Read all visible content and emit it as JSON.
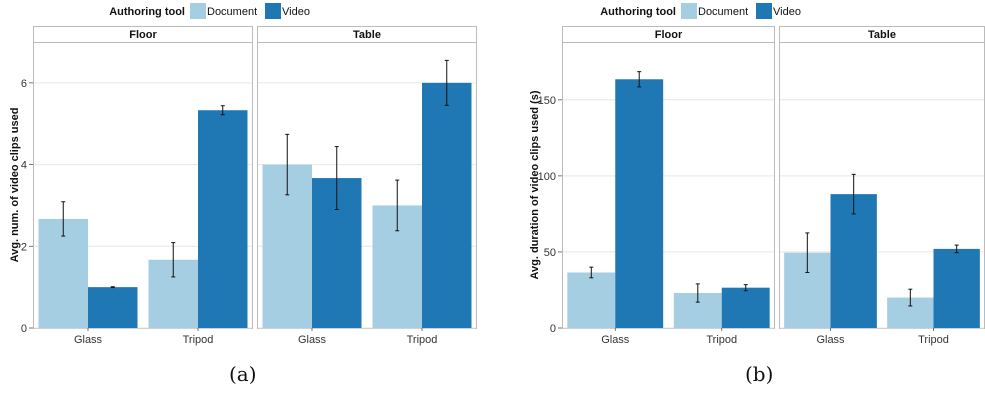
{
  "captions": [
    "(a)",
    "(b)"
  ],
  "legend": {
    "title": "Authoring tool",
    "items": [
      {
        "label": "Document",
        "color": "#a6cee3"
      },
      {
        "label": "Video",
        "color": "#1f78b4"
      }
    ]
  },
  "chart_data": [
    {
      "type": "bar",
      "ylabel": "Avg. num. of video clips used",
      "ylim": [
        0,
        7
      ],
      "yticks": [
        0,
        2,
        4,
        6
      ],
      "grid": true,
      "legend_position": "top",
      "facets": [
        {
          "label": "Floor",
          "categories": [
            "Glass",
            "Tripod"
          ],
          "series": [
            {
              "name": "Document",
              "values": [
                2.67,
                1.67
              ],
              "err": [
                0.42,
                0.42
              ]
            },
            {
              "name": "Video",
              "values": [
                1.0,
                5.33
              ],
              "err": [
                0.01,
                0.11
              ]
            }
          ]
        },
        {
          "label": "Table",
          "categories": [
            "Glass",
            "Tripod"
          ],
          "series": [
            {
              "name": "Document",
              "values": [
                4.0,
                3.0
              ],
              "err": [
                0.74,
                0.62
              ]
            },
            {
              "name": "Video",
              "values": [
                3.67,
                6.0
              ],
              "err": [
                0.77,
                0.55
              ]
            }
          ]
        }
      ]
    },
    {
      "type": "bar",
      "ylabel": "Avg. duration of video clips used (s)",
      "ylim": [
        0,
        188
      ],
      "yticks": [
        0,
        50,
        100,
        150
      ],
      "grid": true,
      "legend_position": "top",
      "facets": [
        {
          "label": "Floor",
          "categories": [
            "Glass",
            "Tripod"
          ],
          "series": [
            {
              "name": "Document",
              "values": [
                36.5,
                23.0
              ],
              "err": [
                3.5,
                6.0
              ]
            },
            {
              "name": "Video",
              "values": [
                163.5,
                26.5
              ],
              "err": [
                5.0,
                2.0
              ]
            }
          ]
        },
        {
          "label": "Table",
          "categories": [
            "Glass",
            "Tripod"
          ],
          "series": [
            {
              "name": "Document",
              "values": [
                49.5,
                20.0
              ],
              "err": [
                13.0,
                5.5
              ]
            },
            {
              "name": "Video",
              "values": [
                88.0,
                52.0
              ],
              "err": [
                13.0,
                2.5
              ]
            }
          ]
        }
      ]
    }
  ]
}
